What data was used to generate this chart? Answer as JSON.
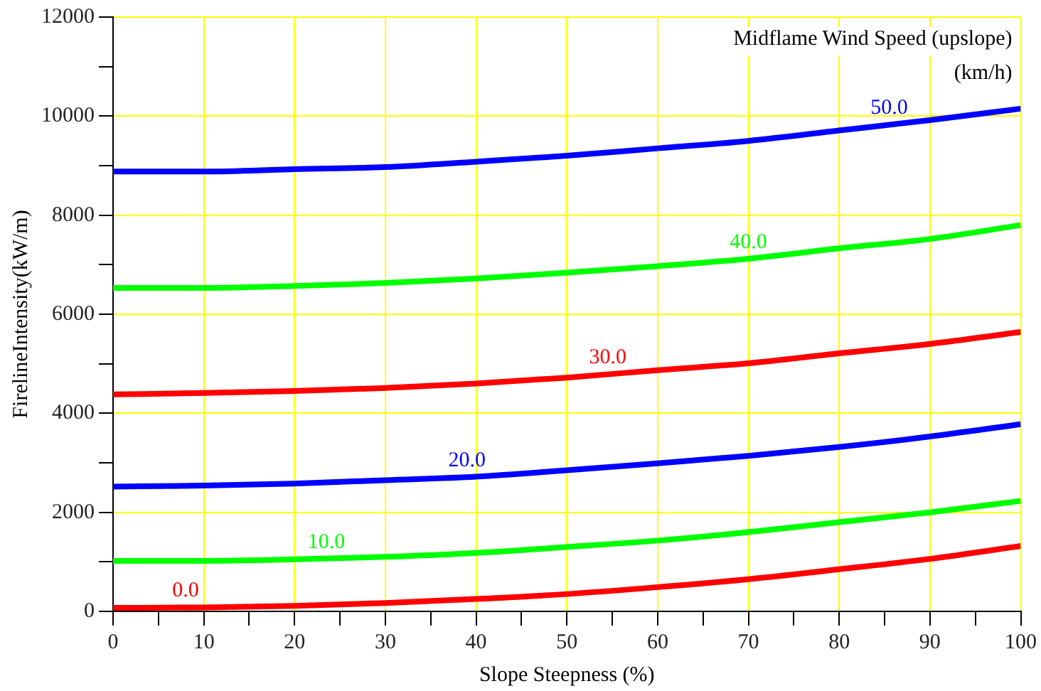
{
  "chart_data": {
    "type": "line",
    "xlabel": "Slope Steepness (%)",
    "ylabel": "FirelineIntensity(kW/m)",
    "legend_title": "Midflame Wind Speed (upslope) (km/h)",
    "x": [
      0,
      10,
      20,
      30,
      40,
      50,
      60,
      70,
      80,
      90,
      100
    ],
    "series": [
      {
        "name": "0.0",
        "color": "#ff0000",
        "values": [
          70,
          80,
          110,
          170,
          250,
          350,
          490,
          650,
          850,
          1060,
          1320
        ]
      },
      {
        "name": "10.0",
        "color": "#00ff00",
        "values": [
          1020,
          1020,
          1050,
          1100,
          1180,
          1300,
          1430,
          1600,
          1800,
          2000,
          2230
        ]
      },
      {
        "name": "20.0",
        "color": "#0000ff",
        "values": [
          2520,
          2540,
          2580,
          2650,
          2720,
          2850,
          2990,
          3140,
          3320,
          3530,
          3780
        ]
      },
      {
        "name": "30.0",
        "color": "#ff0000",
        "values": [
          4380,
          4410,
          4450,
          4510,
          4600,
          4720,
          4870,
          5010,
          5210,
          5400,
          5640
        ]
      },
      {
        "name": "40.0",
        "color": "#00ff00",
        "values": [
          6530,
          6530,
          6570,
          6630,
          6720,
          6840,
          6970,
          7120,
          7330,
          7520,
          7800
        ]
      },
      {
        "name": "50.0",
        "color": "#0000ff",
        "values": [
          8880,
          8880,
          8930,
          8970,
          9080,
          9200,
          9350,
          9500,
          9710,
          9920,
          10150
        ]
      }
    ],
    "xlim": [
      0,
      100
    ],
    "ylim": [
      0,
      12000
    ],
    "xticks": [
      0,
      {
        "value": 5,
        "label": null
      },
      10,
      {
        "value": 15,
        "label": null
      },
      20,
      {
        "value": 25,
        "label": null
      },
      30,
      {
        "value": 35,
        "label": null
      },
      40,
      {
        "value": 45,
        "label": null
      },
      50,
      {
        "value": 55,
        "label": null
      },
      60,
      {
        "value": 65,
        "label": null
      },
      70,
      {
        "value": 75,
        "label": null
      },
      80,
      {
        "value": 85,
        "label": null
      },
      90,
      {
        "value": 95,
        "label": null
      },
      100
    ],
    "yticks": [
      0,
      {
        "value": 1000,
        "label": null
      },
      2000,
      {
        "value": 3000,
        "label": null
      },
      4000,
      {
        "value": 5000,
        "label": null
      },
      6000,
      {
        "value": 7000,
        "label": null
      },
      8000,
      {
        "value": 9000,
        "label": null
      },
      10000,
      {
        "value": 11000,
        "label": null
      },
      12000
    ],
    "grid": true,
    "legend": false,
    "marker": "none",
    "line_style": "solid"
  }
}
